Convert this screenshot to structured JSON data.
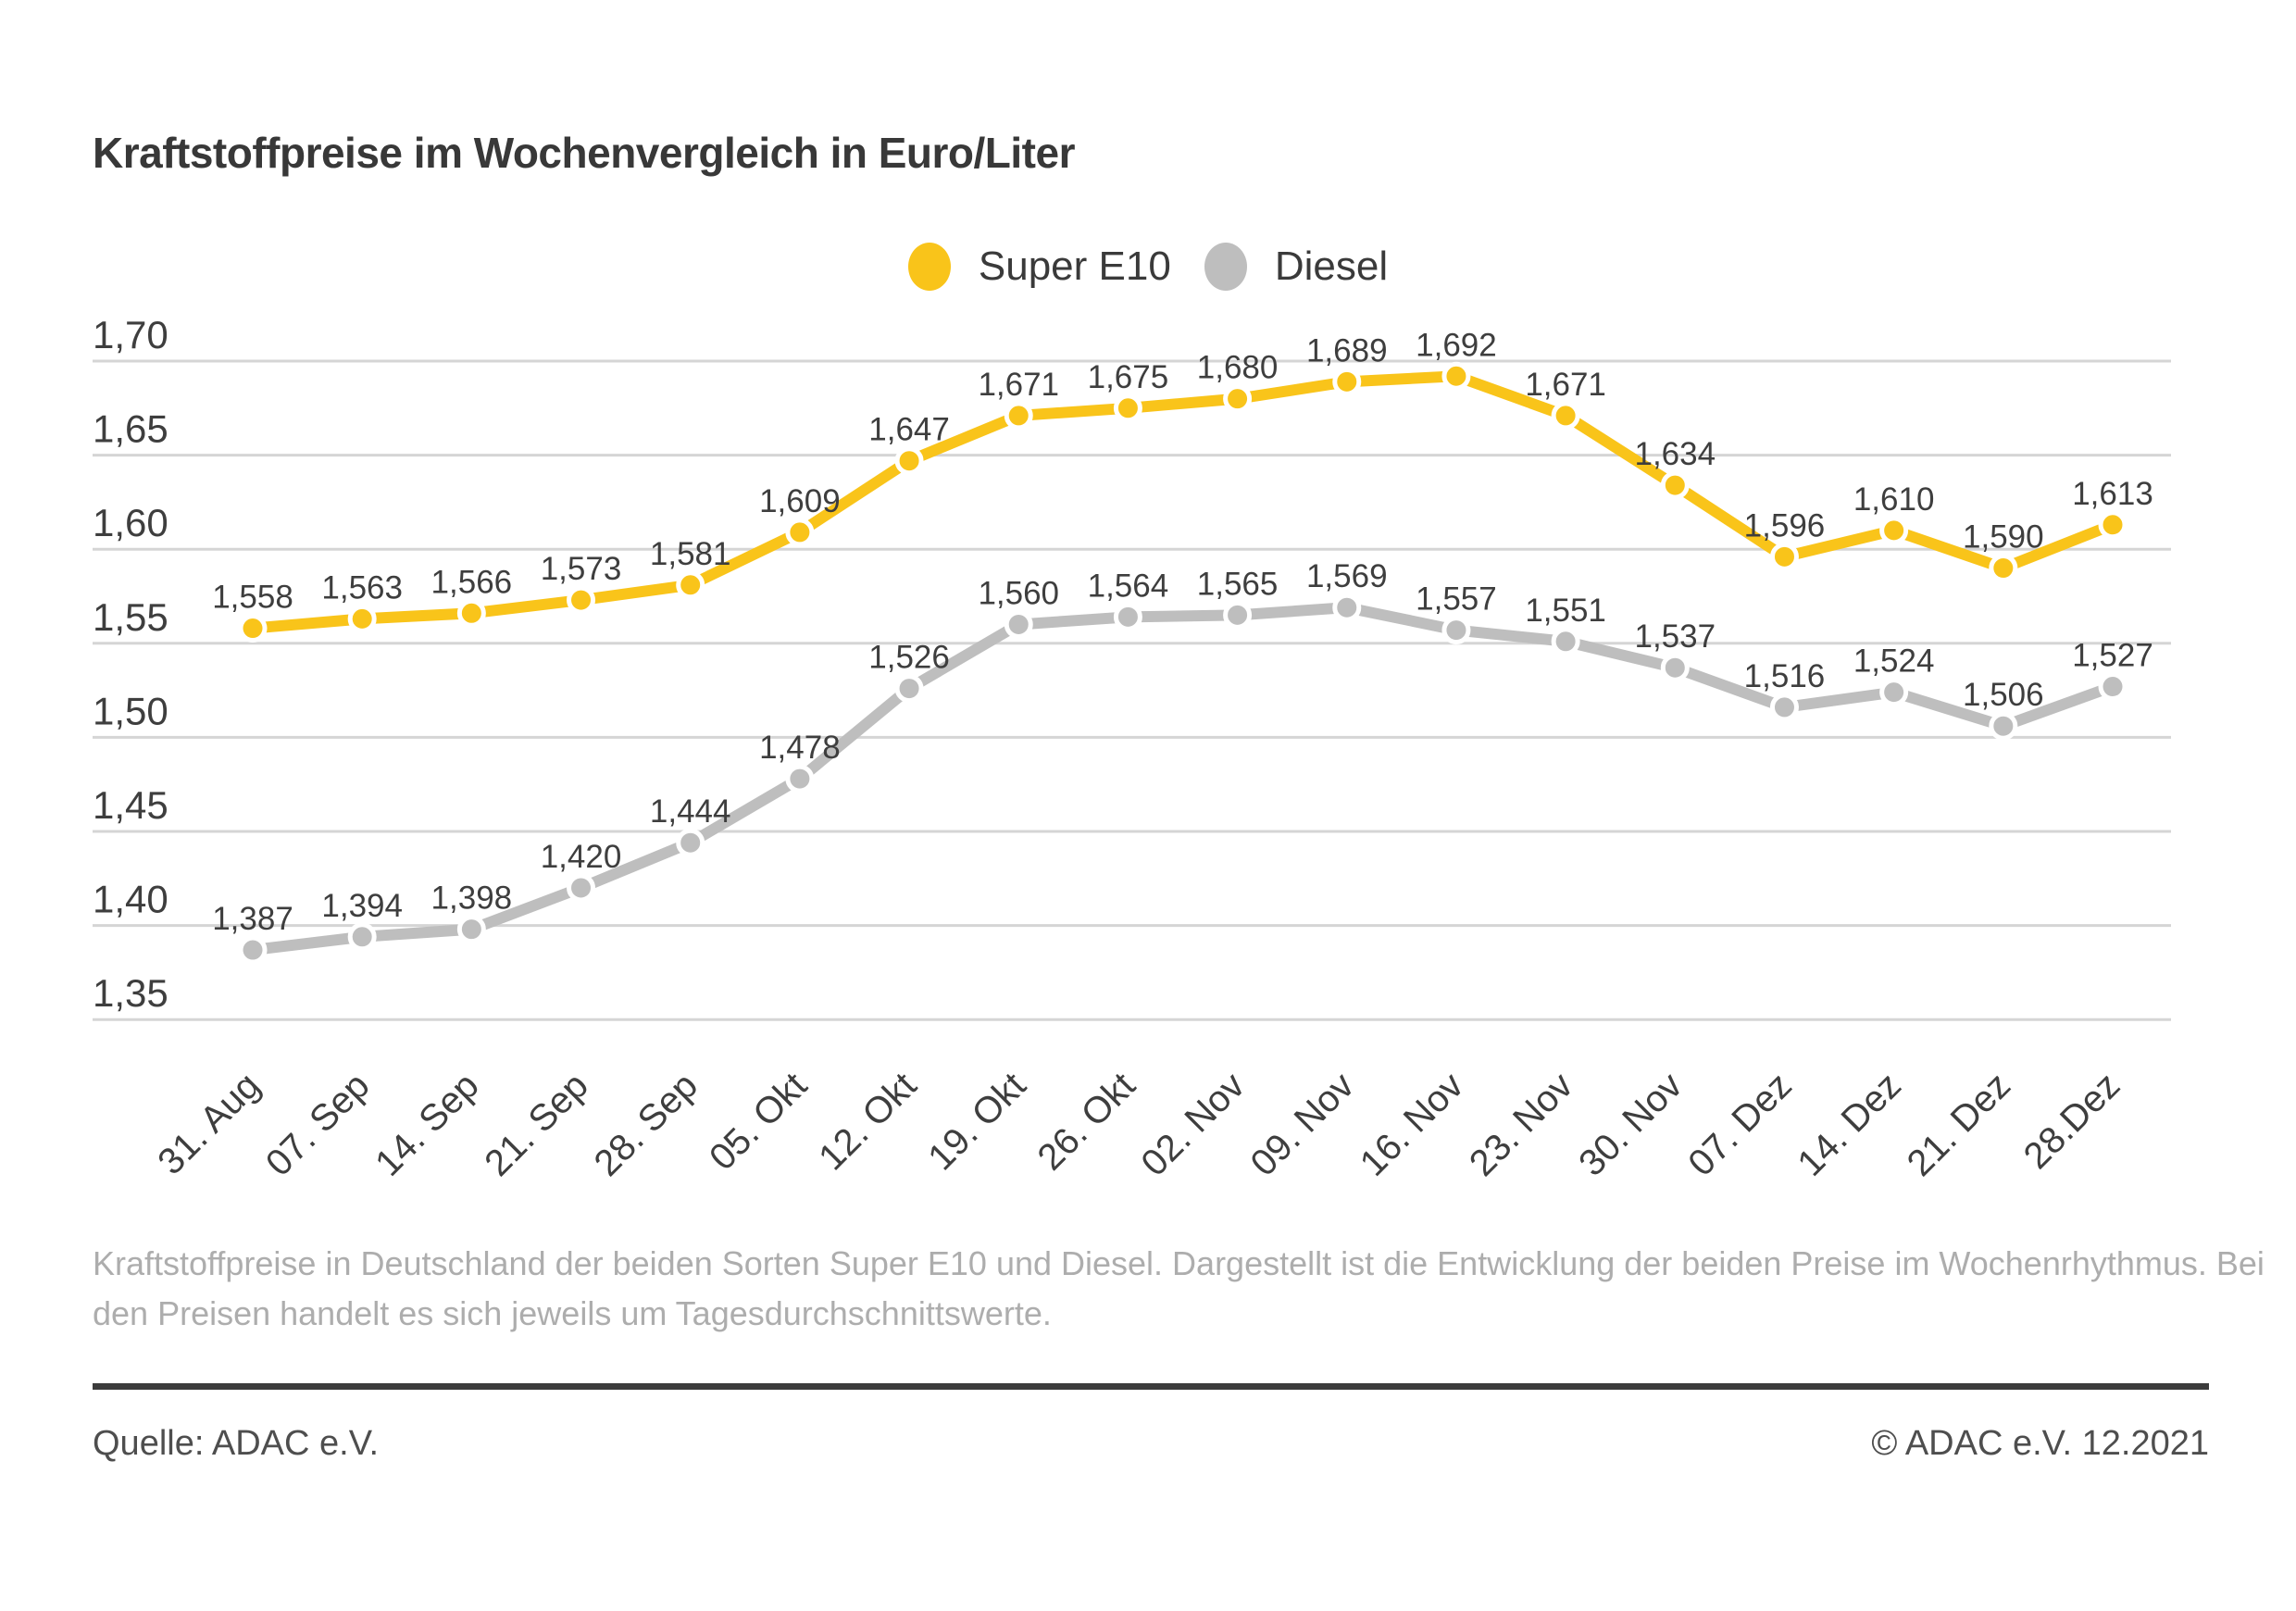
{
  "title": "Kraftstoffpreise im Wochenvergleich in Euro/Liter",
  "colors": {
    "super_e10": "#F9C41A",
    "diesel": "#BEBEBE",
    "grid": "#D5D5D5",
    "text": "#3E3E3E",
    "muted_text": "#ADADAD",
    "source_text": "#4E4E4E",
    "rule": "#3C3C3C"
  },
  "chart_data": {
    "type": "line",
    "categories": [
      "31. Aug",
      "07. Sep",
      "14. Sep",
      "21. Sep",
      "28. Sep",
      "05. Okt",
      "12. Okt",
      "19. Okt",
      "26. Okt",
      "02. Nov",
      "09. Nov",
      "16. Nov",
      "23. Nov",
      "30. Nov",
      "07. Dez",
      "14. Dez",
      "21. Dez",
      "28.Dez"
    ],
    "series": [
      {
        "name": "Super E10",
        "color": "#F9C41A",
        "values": [
          1.558,
          1.563,
          1.566,
          1.573,
          1.581,
          1.609,
          1.647,
          1.671,
          1.675,
          1.68,
          1.689,
          1.692,
          1.671,
          1.634,
          1.596,
          1.61,
          1.59,
          1.613
        ]
      },
      {
        "name": "Diesel",
        "color": "#BEBEBE",
        "values": [
          1.387,
          1.394,
          1.398,
          1.42,
          1.444,
          1.478,
          1.526,
          1.56,
          1.564,
          1.565,
          1.569,
          1.557,
          1.551,
          1.537,
          1.516,
          1.524,
          1.506,
          1.527
        ]
      }
    ],
    "ylim": [
      1.35,
      1.7
    ],
    "ytick_step": 0.05,
    "tick_decimals": 2,
    "value_label_decimals": 3,
    "decimal_format": "comma",
    "grid": true,
    "legend_position": "top-center",
    "xlabel": "",
    "ylabel": ""
  },
  "footer": {
    "description": "Kraftstoffpreise in Deutschland der beiden Sorten Super E10 und Diesel. Dargestellt ist die Entwicklung der beiden Preise im Wochenrhythmus. Bei den Preisen handelt es sich jeweils um Tagesdurchschnittswerte.",
    "source_left": "Quelle: ADAC e.V.",
    "source_right": "© ADAC e.V. 12.2021"
  }
}
